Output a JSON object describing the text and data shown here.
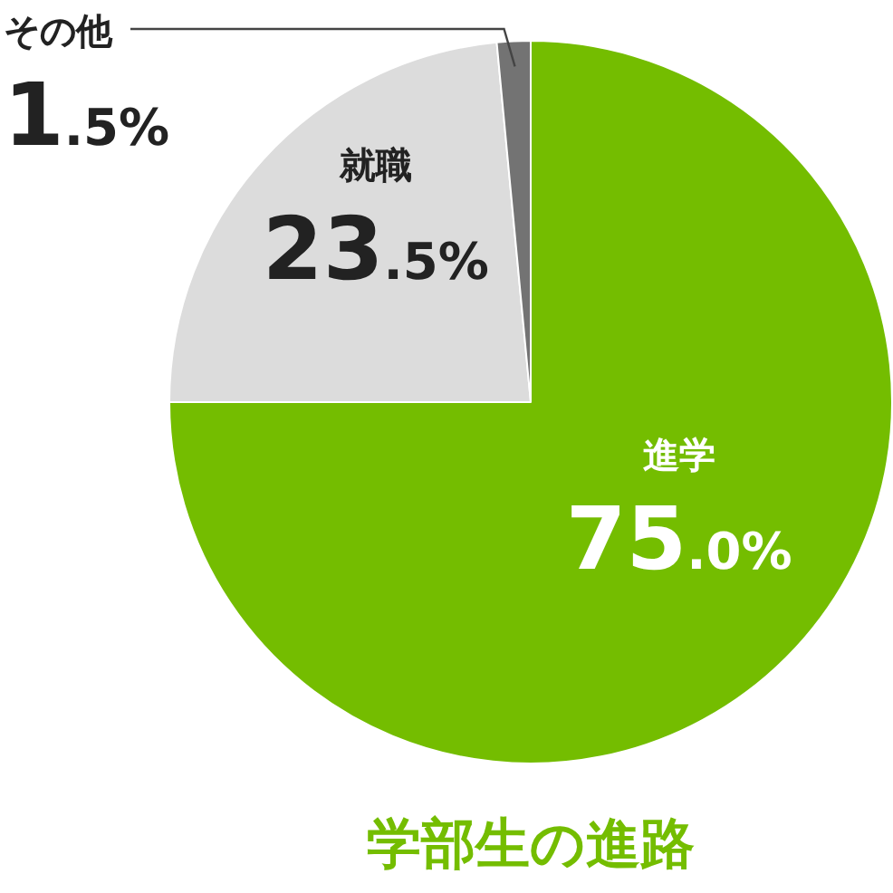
{
  "chart_data": {
    "type": "pie",
    "title": "学部生の進路",
    "categories": [
      "進学",
      "就職",
      "その他"
    ],
    "values": [
      75.0,
      23.5,
      1.5
    ],
    "colors": [
      "#74bd00",
      "#dcdcdc",
      "#737373"
    ],
    "value_labels": [
      "75.0%",
      "23.5%",
      "1.5%"
    ],
    "legend": false
  }
}
